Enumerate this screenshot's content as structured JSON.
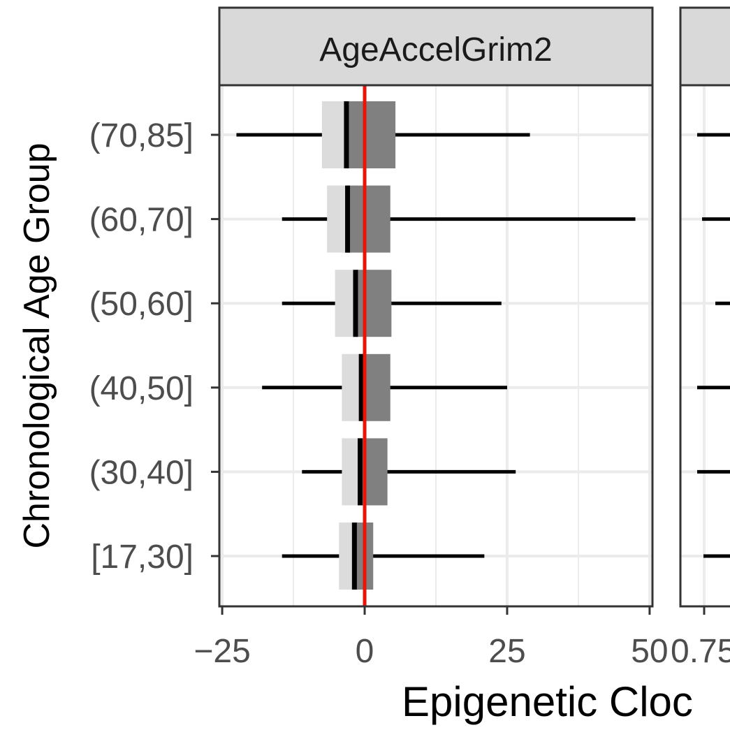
{
  "chart_data": {
    "type": "boxplot",
    "ylabel": "Chronological Age Group",
    "xlabel": "Epigenetic Cloc",
    "colors": {
      "panel_border": "#333333",
      "strip_fill": "#d9d9d9",
      "grid": "#ebebeb",
      "box_lower": "#dcdcdc",
      "box_upper": "#808080",
      "whisker": "#000000",
      "median": "#000000",
      "reference_line": "#e8140c",
      "tick_label": "#4d4d4d",
      "axis_title": "#000000"
    },
    "categories": [
      "[17,30]",
      "(30,40]",
      "(40,50]",
      "(50,60]",
      "(60,70]",
      "(70,85]"
    ],
    "panels": [
      {
        "strip_label": "AgeAccelGrim2",
        "xlim": [
          -25.5,
          50.5
        ],
        "x_ticks": [
          -25,
          0,
          25,
          50
        ],
        "x_tick_labels": [
          "−25",
          "0",
          "25",
          "50"
        ],
        "reference_line": 0,
        "groups": [
          {
            "category": "[17,30]",
            "whisker_low": -14.5,
            "q1": -4.5,
            "median": -1.8,
            "q3": 1.5,
            "whisker_high": 21
          },
          {
            "category": "(30,40]",
            "whisker_low": -11,
            "q1": -4,
            "median": -0.8,
            "q3": 4,
            "whisker_high": 26.5
          },
          {
            "category": "(40,50]",
            "whisker_low": -18,
            "q1": -4,
            "median": -0.6,
            "q3": 4.5,
            "whisker_high": 25
          },
          {
            "category": "(50,60]",
            "whisker_low": -14.5,
            "q1": -5.2,
            "median": -1.6,
            "q3": 4.7,
            "whisker_high": 24
          },
          {
            "category": "(60,70]",
            "whisker_low": -14.5,
            "q1": -6.6,
            "median": -3,
            "q3": 4.5,
            "whisker_high": 47.5
          },
          {
            "category": "(70,85]",
            "whisker_low": -22.5,
            "q1": -7.5,
            "median": -3.2,
            "q3": 5.4,
            "whisker_high": 29
          }
        ]
      },
      {
        "strip_label": "",
        "x_ticks_visible": [
          0.75
        ],
        "x_tick_labels": [
          "0.75"
        ],
        "whisker_low_by_category": {
          "[17,30]": 0.745,
          "(30,40]": 0.7,
          "(40,50]": 0.7,
          "(50,60]": 0.83,
          "(60,70]": 0.735,
          "(70,85]": 0.7
        }
      }
    ]
  }
}
